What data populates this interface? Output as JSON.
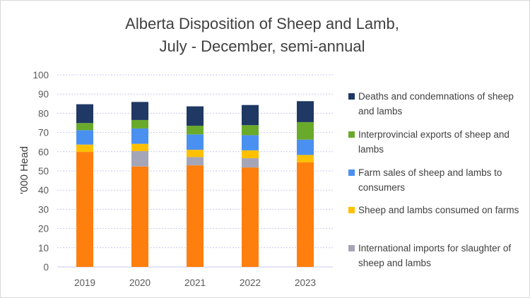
{
  "chart_data": {
    "type": "stacked-bar",
    "title": "Alberta Disposition of Sheep and Lamb,",
    "subtitle": "July - December, semi-annual",
    "xlabel": "",
    "ylabel": "'000 Head",
    "ylim": [
      0,
      100
    ],
    "yticks": [
      0,
      10,
      20,
      30,
      40,
      50,
      60,
      70,
      80,
      90,
      100
    ],
    "grid": true,
    "legend_position": "right",
    "categories": [
      "2019",
      "2020",
      "2021",
      "2022",
      "2023"
    ],
    "series": [
      {
        "color": "#ff7f0e",
        "values": [
          59.9,
          52.3,
          52.9,
          51.8,
          54.5
        ]
      },
      {
        "name": "International imports for slaughter of sheep and lambs",
        "color": "#a5a5b8",
        "values": [
          0,
          8.0,
          4.3,
          4.8,
          0
        ]
      },
      {
        "name": "Sheep and lambs consumed on farms",
        "color": "#ffc000",
        "values": [
          3.8,
          3.8,
          3.8,
          4.1,
          3.8
        ]
      },
      {
        "name": "Farm sales of sheep and lambs to consumers",
        "color": "#4a90f0",
        "values": [
          7.5,
          8.0,
          8.0,
          7.9,
          8.0
        ]
      },
      {
        "name": "Interprovincial exports of sheep and lambs",
        "color": "#6aaa2a",
        "values": [
          3.7,
          4.4,
          4.5,
          5.2,
          9.1
        ]
      },
      {
        "name": "Deaths and condemnations of sheep and lambs",
        "color": "#1f3864",
        "values": [
          9.8,
          9.4,
          10.1,
          10.5,
          10.9
        ]
      }
    ],
    "legend": [
      "Deaths and condemnations of sheep and lambs",
      "Interprovincial exports of sheep and lambs",
      "Farm sales of sheep and lambs to consumers",
      "Sheep and lambs consumed on farms",
      "International imports for slaughter of sheep and lambs"
    ]
  }
}
